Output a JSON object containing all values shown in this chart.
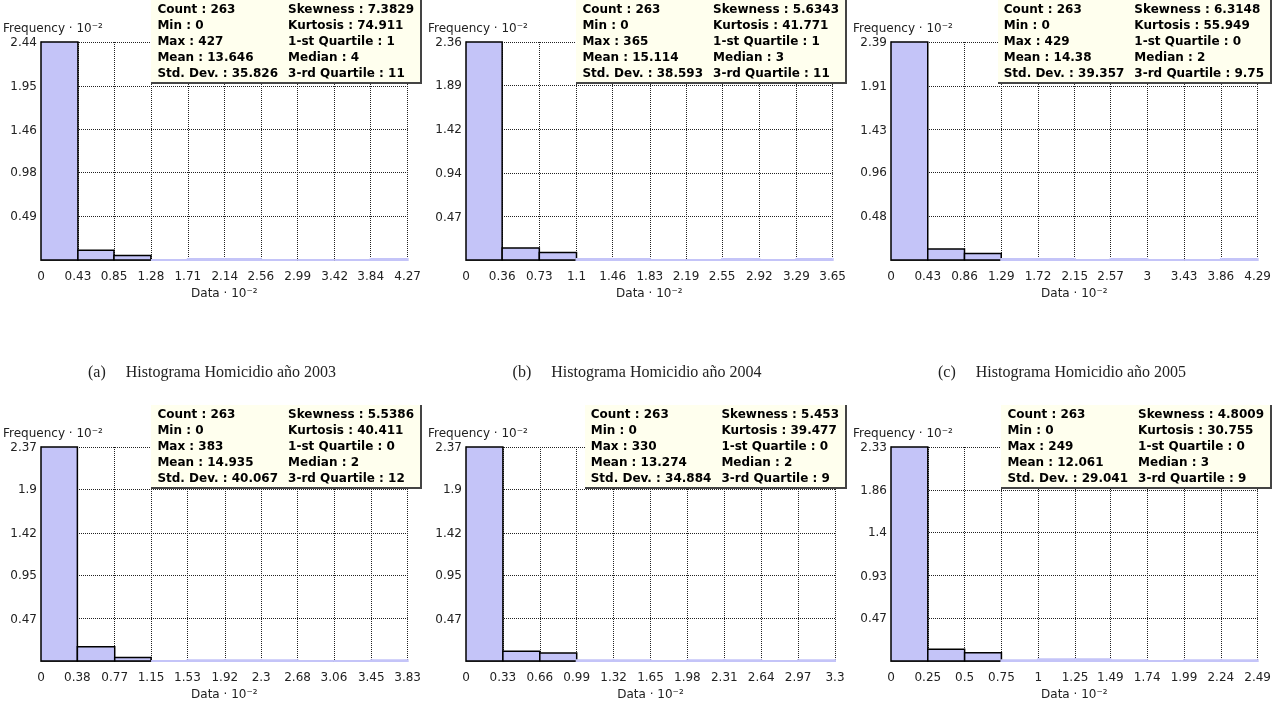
{
  "chart_data": [
    {
      "type": "histogram",
      "title": "(a)     Histograma Homicidio año 2003",
      "xlabel": "Data · 10⁻²",
      "ylabel": "Frequency · 10⁻²",
      "color": "#c4c4f8",
      "grid": true,
      "bins": [
        0,
        0.43,
        0.85,
        1.28,
        1.71,
        2.14,
        2.56,
        2.99,
        3.42,
        3.84,
        4.27
      ],
      "values": [
        2.44,
        0.11,
        0.05,
        0,
        0.01,
        0.01,
        0,
        0,
        0,
        0.01
      ],
      "xlim": [
        0,
        4.27
      ],
      "xticks": [
        0,
        0.43,
        0.85,
        1.28,
        1.71,
        2.14,
        2.56,
        2.99,
        3.42,
        3.84,
        4.27
      ],
      "ylim": [
        0,
        2.44
      ],
      "yticks": [
        0.49,
        0.98,
        1.46,
        1.95,
        2.44
      ],
      "annotations": [
        "Count : 263",
        "Min : 0",
        "Max : 427",
        "Mean : 13.646",
        "Std. Dev. : 35.826",
        "Skewness : 7.3829",
        "Kurtosis : 74.911",
        "1-st Quartile : 1",
        "Median : 4",
        "3-rd Quartile : 11"
      ]
    },
    {
      "type": "histogram",
      "title": "(b)     Histograma Homicidio año 2004",
      "xlabel": "Data · 10⁻²",
      "ylabel": "Frequency · 10⁻²",
      "color": "#c4c4f8",
      "grid": true,
      "bins": [
        0,
        0.36,
        0.73,
        1.1,
        1.46,
        1.83,
        2.19,
        2.55,
        2.92,
        3.29,
        3.65
      ],
      "values": [
        2.36,
        0.13,
        0.08,
        0.01,
        0.01,
        0,
        0,
        0.01,
        0,
        0.01
      ],
      "xlim": [
        0,
        3.65
      ],
      "xticks": [
        0,
        0.36,
        0.73,
        1.1,
        1.46,
        1.83,
        2.19,
        2.55,
        2.92,
        3.29,
        3.65
      ],
      "ylim": [
        0,
        2.36
      ],
      "yticks": [
        0.47,
        0.94,
        1.42,
        1.89,
        2.36
      ],
      "annotations": [
        "Count : 263",
        "Min : 0",
        "Max : 365",
        "Mean : 15.114",
        "Std. Dev. : 38.593",
        "Skewness : 5.6343",
        "Kurtosis : 41.771",
        "1-st Quartile : 1",
        "Median : 3",
        "3-rd Quartile : 11"
      ]
    },
    {
      "type": "histogram",
      "title": "(c)     Histograma Homicidio año 2005",
      "xlabel": "Data · 10⁻²",
      "ylabel": "Frequency · 10⁻²",
      "color": "#c4c4f8",
      "grid": true,
      "bins": [
        0,
        0.43,
        0.86,
        1.29,
        1.72,
        2.15,
        2.57,
        3,
        3.43,
        3.86,
        4.29
      ],
      "values": [
        2.39,
        0.12,
        0.07,
        0.01,
        0.01,
        0,
        0.01,
        0,
        0,
        0.01
      ],
      "xlim": [
        0,
        4.29
      ],
      "xticks": [
        0,
        0.43,
        0.86,
        1.29,
        1.72,
        2.15,
        2.57,
        3,
        3.43,
        3.86,
        4.29
      ],
      "ylim": [
        0,
        2.39
      ],
      "yticks": [
        0.48,
        0.96,
        1.43,
        1.91,
        2.39
      ],
      "annotations": [
        "Count : 263",
        "Min : 0",
        "Max : 429",
        "Mean : 14.38",
        "Std. Dev. : 39.357",
        "Skewness : 6.3148",
        "Kurtosis : 55.949",
        "1-st Quartile : 0",
        "Median : 2",
        "3-rd Quartile : 9.75"
      ]
    },
    {
      "type": "histogram",
      "xlabel": "Data · 10⁻²",
      "ylabel": "Frequency · 10⁻²",
      "color": "#c4c4f8",
      "grid": true,
      "bins": [
        0,
        0.38,
        0.77,
        1.15,
        1.53,
        1.92,
        2.3,
        2.68,
        3.06,
        3.45,
        3.83
      ],
      "values": [
        2.37,
        0.16,
        0.04,
        0,
        0.01,
        0.01,
        0.01,
        0,
        0,
        0.01
      ],
      "xlim": [
        0,
        3.83
      ],
      "xticks": [
        0,
        0.38,
        0.77,
        1.15,
        1.53,
        1.92,
        2.3,
        2.68,
        3.06,
        3.45,
        3.83
      ],
      "ylim": [
        0,
        2.37
      ],
      "yticks": [
        0.47,
        0.95,
        1.42,
        1.9,
        2.37
      ],
      "annotations": [
        "Count : 263",
        "Min : 0",
        "Max : 383",
        "Mean : 14.935",
        "Std. Dev. : 40.067",
        "Skewness : 5.5386",
        "Kurtosis : 40.411",
        "1-st Quartile : 0",
        "Median : 2",
        "3-rd Quartile : 12"
      ]
    },
    {
      "type": "histogram",
      "xlabel": "Data · 10⁻²",
      "ylabel": "Frequency · 10⁻²",
      "color": "#c4c4f8",
      "grid": true,
      "bins": [
        0,
        0.33,
        0.66,
        0.99,
        1.32,
        1.65,
        1.98,
        2.31,
        2.64,
        2.97,
        3.3
      ],
      "values": [
        2.37,
        0.11,
        0.09,
        0.01,
        0.01,
        0,
        0.01,
        0.01,
        0,
        0.01
      ],
      "xlim": [
        0,
        3.3
      ],
      "xticks": [
        0,
        0.33,
        0.66,
        0.99,
        1.32,
        1.65,
        1.98,
        2.31,
        2.64,
        2.97,
        3.3
      ],
      "ylim": [
        0,
        2.37
      ],
      "yticks": [
        0.47,
        0.95,
        1.42,
        1.9,
        2.37
      ],
      "annotations": [
        "Count : 263",
        "Min : 0",
        "Max : 330",
        "Mean : 13.274",
        "Std. Dev. : 34.884",
        "Skewness : 5.453",
        "Kurtosis : 39.477",
        "1-st Quartile : 0",
        "Median : 2",
        "3-rd Quartile : 9"
      ]
    },
    {
      "type": "histogram",
      "xlabel": "Data · 10⁻²",
      "ylabel": "Frequency · 10⁻²",
      "color": "#c4c4f8",
      "grid": true,
      "bins": [
        0,
        0.25,
        0.5,
        0.75,
        1,
        1.25,
        1.49,
        1.74,
        1.99,
        2.24,
        2.49
      ],
      "values": [
        2.33,
        0.13,
        0.09,
        0.01,
        0.02,
        0.02,
        0.01,
        0,
        0.01,
        0.01
      ],
      "xlim": [
        0,
        2.49
      ],
      "xticks": [
        0,
        0.25,
        0.5,
        0.75,
        1,
        1.25,
        1.49,
        1.74,
        1.99,
        2.24,
        2.49
      ],
      "ylim": [
        0,
        2.33
      ],
      "yticks": [
        0.47,
        0.93,
        1.4,
        1.86,
        2.33
      ],
      "annotations": [
        "Count : 263",
        "Min : 0",
        "Max : 249",
        "Mean : 12.061",
        "Std. Dev. : 29.041",
        "Skewness : 4.8009",
        "Kurtosis : 30.755",
        "1-st Quartile : 0",
        "Median : 3",
        "3-rd Quartile : 9"
      ]
    }
  ]
}
